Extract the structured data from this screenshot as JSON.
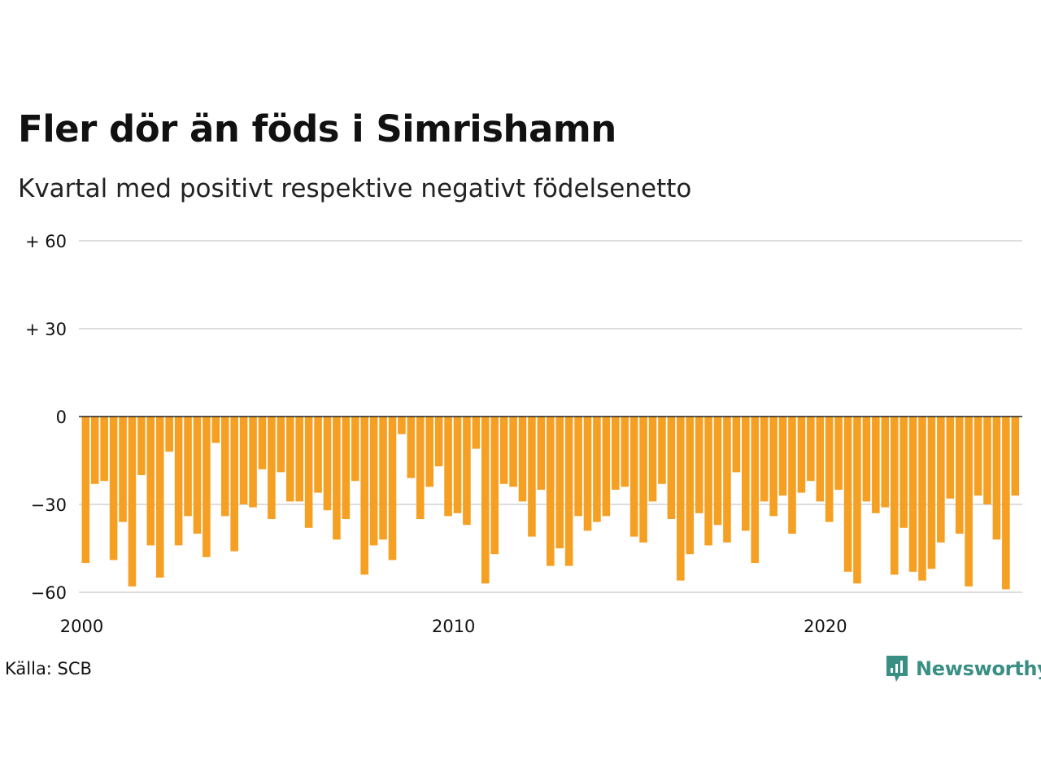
{
  "header": {
    "title": "Fler dör än föds i Simrishamn",
    "subtitle": "Kvartal med positivt respektive negativt födelsenetto"
  },
  "footer": {
    "source": "Källa: SCB",
    "brand": "Newsworthy",
    "brand_icon": "bar-chart-speech-icon"
  },
  "colors": {
    "negative_bar": "#f5a023",
    "brand": "#3a8f84",
    "grid": "#dddddd",
    "zero_line": "#222222"
  },
  "chart_data": {
    "type": "bar",
    "x_start": 2000,
    "quarters_per_year": 4,
    "ylim": [
      -60,
      60
    ],
    "yticks": [
      60,
      30,
      0,
      -30,
      -60
    ],
    "ytick_labels": [
      "+ 60",
      "+ 30",
      "0",
      "−30",
      "−60"
    ],
    "xticks": [
      2000,
      2010,
      2020
    ],
    "xtick_labels": [
      "2000",
      "2010",
      "2020"
    ],
    "grid": true,
    "values": [
      -50,
      -23,
      -22,
      -49,
      -36,
      -58,
      -20,
      -44,
      -55,
      -12,
      -44,
      -34,
      -40,
      -48,
      -9,
      -34,
      -46,
      -30,
      -31,
      -18,
      -35,
      -19,
      -29,
      -29,
      -38,
      -26,
      -32,
      -42,
      -35,
      -22,
      -54,
      -44,
      -42,
      -49,
      -6,
      -21,
      -35,
      -24,
      -17,
      -34,
      -33,
      -37,
      -11,
      -57,
      -47,
      -23,
      -24,
      -29,
      -41,
      -25,
      -51,
      -45,
      -51,
      -34,
      -39,
      -36,
      -34,
      -25,
      -24,
      -41,
      -43,
      -29,
      -23,
      -35,
      -56,
      -47,
      -33,
      -44,
      -37,
      -43,
      -19,
      -39,
      -50,
      -29,
      -34,
      -27,
      -40,
      -26,
      -22,
      -29,
      -36,
      -25,
      -53,
      -57,
      -29,
      -33,
      -31,
      -54,
      -38,
      -53,
      -56,
      -52,
      -43,
      -28,
      -40,
      -58,
      -27,
      -30,
      -42,
      -59,
      -27
    ]
  }
}
